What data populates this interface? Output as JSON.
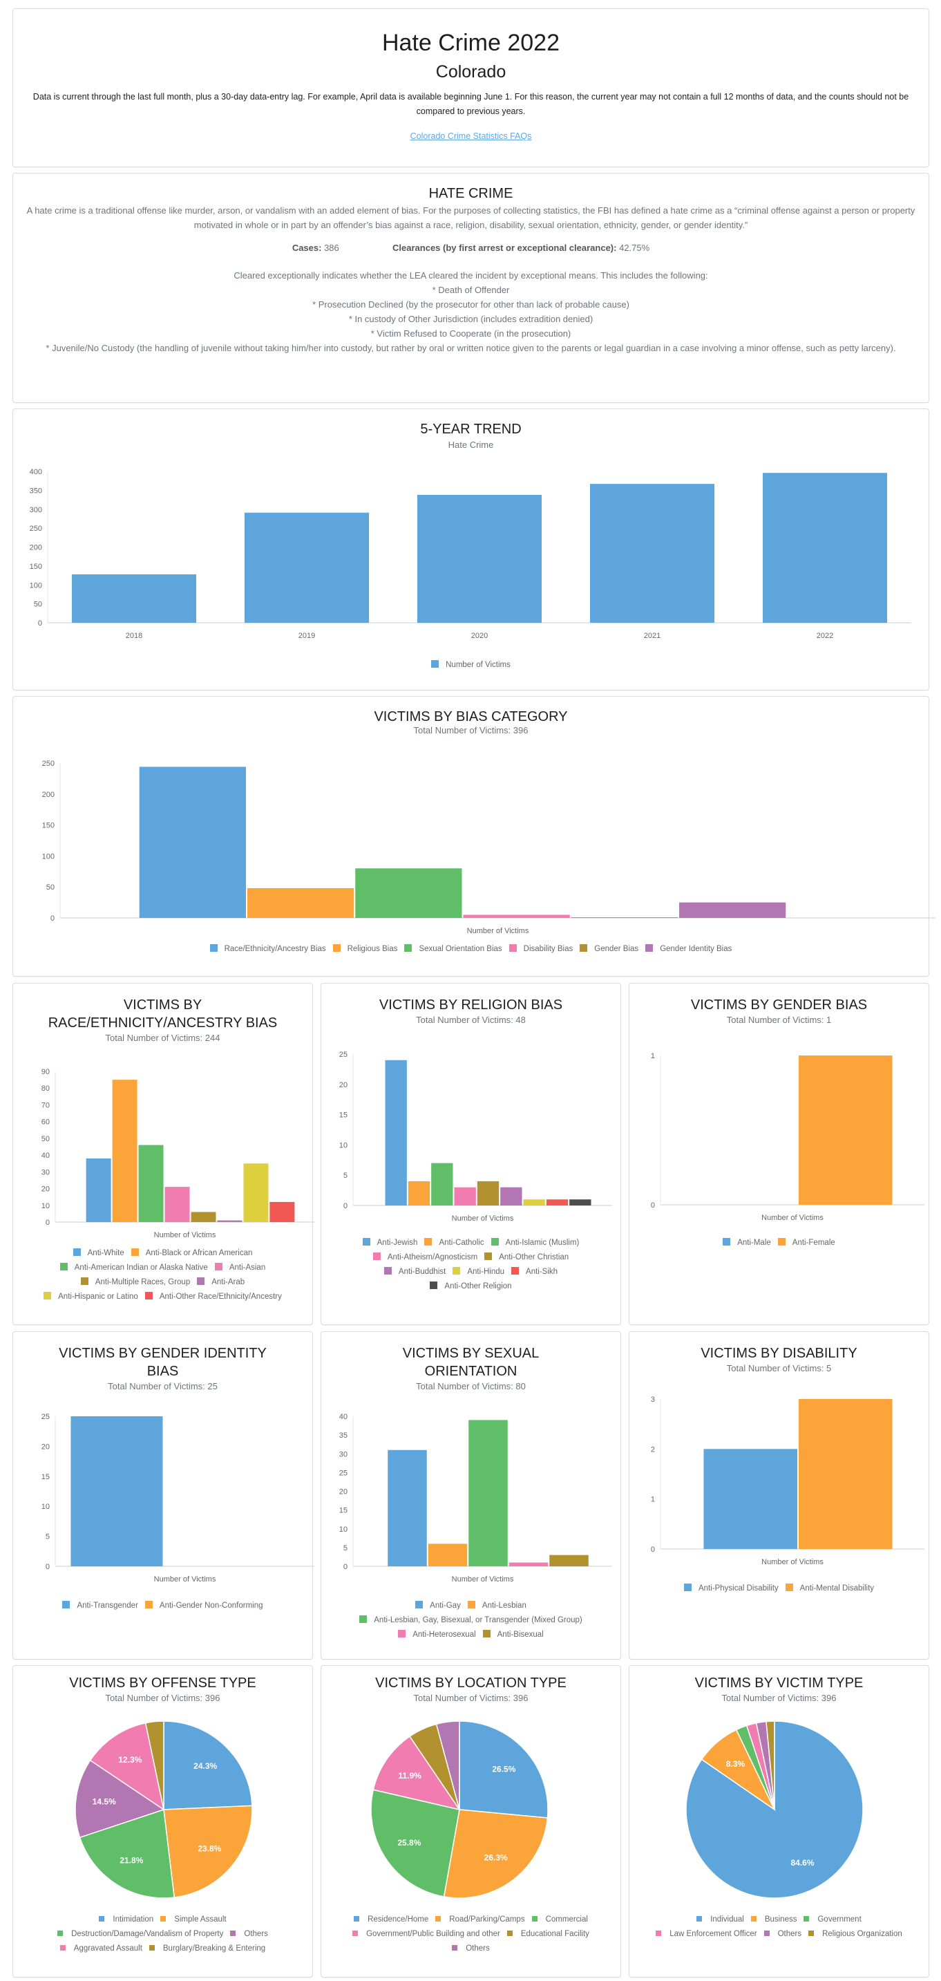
{
  "header": {
    "title": "Hate Crime 2022",
    "state": "Colorado",
    "note": "Data is current through the last full month, plus a 30-day data-entry lag. For example, April data is available beginning June 1. For this reason, the current year may not contain a full 12 months of data, and the counts should not be compared to previous years.",
    "faq_link": "Colorado Crime Statistics FAQs"
  },
  "hate_crime": {
    "title": "HATE CRIME",
    "definition": "A hate crime is a traditional offense like murder, arson, or vandalism with an added element of bias. For the purposes of collecting statistics, the FBI has defined a hate crime as a “criminal offense against a person or property motivated in whole or in part by an offender’s bias against a race, religion, disability, sexual orientation, ethnicity, gender, or gender identity.”",
    "cases_label": "Cases:",
    "cases_value": "386",
    "clearances_label": "Clearances (by first arrest or exceptional clearance):",
    "clearances_value": "42.75%",
    "cleared_intro": "Cleared exceptionally indicates whether the LEA cleared the incident by exceptional means. This includes the following:",
    "cleared_items": [
      "* Death of Offender",
      "* Prosecution Declined (by the prosecutor for other than lack of probable cause)",
      "* In custody of Other Jurisdiction (includes extradition denied)",
      "* Victim Refused to Cooperate (in the prosecution)",
      "* Juvenile/No Custody (the handling of juvenile without taking him/her into custody, but rather by oral or written notice given to the parents or legal guardian in a case involving a minor offense, such as petty larceny)."
    ]
  },
  "colors": {
    "blue": "#5da5da",
    "orange": "#faa43a",
    "green": "#60bd68",
    "pink": "#f17cb0",
    "olive": "#b2912f",
    "purple": "#b276b2",
    "yellow": "#decf3f",
    "red": "#f15854",
    "dark": "#4d4d4d",
    "link": "#5fa7e6"
  },
  "chart_data": [
    {
      "id": "trend",
      "type": "bar",
      "title": "5-YEAR TREND",
      "subtitle": "Hate Crime",
      "categories": [
        "2018",
        "2019",
        "2020",
        "2021",
        "2022"
      ],
      "series": [
        {
          "name": "Number of Victims",
          "values": [
            128,
            291,
            338,
            367,
            396
          ]
        }
      ],
      "ylim": [
        0,
        400
      ],
      "yticks": [
        0,
        50,
        100,
        150,
        200,
        250,
        300,
        350,
        400
      ],
      "xlabel": "",
      "ylabel": "",
      "legend": "bottom"
    },
    {
      "id": "bias",
      "type": "bar",
      "title": "VICTIMS BY BIAS CATEGORY",
      "subtitle": "Total Number of Victims: 396",
      "xlabel": "Number of Victims",
      "categories": [
        "Race/Ethnicity/Ancestry Bias",
        "Religious Bias",
        "Sexual Orientation Bias",
        "Disability Bias",
        "Gender Bias",
        "Gender Identity Bias"
      ],
      "values": [
        244,
        48,
        80,
        5,
        1,
        25
      ],
      "colors": [
        "blue",
        "orange",
        "green",
        "pink",
        "olive",
        "purple"
      ],
      "ylim": [
        0,
        250
      ],
      "yticks": [
        0,
        50,
        100,
        150,
        200,
        250
      ],
      "legend": "bottom"
    },
    {
      "id": "race",
      "type": "bar",
      "title": [
        "VICTIMS BY",
        "RACE/ETHNICITY/ANCESTRY BIAS"
      ],
      "subtitle": "Total Number of Victims: 244",
      "xlabel": "Number of Victims",
      "categories": [
        "Anti-White",
        "Anti-Black or African American",
        "Anti-American Indian or Alaska Native",
        "Anti-Asian",
        "Anti-Multiple Races, Group",
        "Anti-Arab",
        "Anti-Hispanic or Latino",
        "Anti-Other Race/Ethnicity/Ancestry"
      ],
      "values": [
        38,
        85,
        46,
        21,
        6,
        1,
        35,
        12
      ],
      "colors": [
        "blue",
        "orange",
        "green",
        "pink",
        "olive",
        "purple",
        "yellow",
        "red"
      ],
      "ylim": [
        0,
        90
      ],
      "yticks": [
        0,
        10,
        20,
        30,
        40,
        50,
        60,
        70,
        80,
        90
      ],
      "legend_rows": [
        [
          0,
          1
        ],
        [
          2,
          3
        ],
        [
          4,
          5
        ],
        [
          6,
          7
        ]
      ]
    },
    {
      "id": "religion",
      "type": "bar",
      "title": [
        "VICTIMS BY RELIGION BIAS"
      ],
      "subtitle": "Total Number of Victims: 48",
      "xlabel": "Number of Victims",
      "categories": [
        "Anti-Jewish",
        "Anti-Catholic",
        "Anti-Islamic (Muslim)",
        "Anti-Atheism/Agnosticism",
        "Anti-Other Christian",
        "Anti-Buddhist",
        "Anti-Hindu",
        "Anti-Sikh",
        "Anti-Other Religion"
      ],
      "values": [
        24,
        4,
        7,
        3,
        4,
        3,
        1,
        1,
        1
      ],
      "colors": [
        "blue",
        "orange",
        "green",
        "pink",
        "olive",
        "purple",
        "yellow",
        "red",
        "dark"
      ],
      "ylim": [
        0,
        25
      ],
      "yticks": [
        0,
        5,
        10,
        15,
        20,
        25
      ],
      "legend_rows": [
        [
          0,
          1,
          2
        ],
        [
          3,
          4
        ],
        [
          5,
          6,
          7
        ],
        [
          8
        ]
      ]
    },
    {
      "id": "gender",
      "type": "bar",
      "title": [
        "VICTIMS BY GENDER BIAS"
      ],
      "subtitle": "Total Number of Victims: 1",
      "xlabel": "Number of Victims",
      "categories": [
        "Anti-Male",
        "Anti-Female"
      ],
      "values": [
        0,
        1
      ],
      "colors": [
        "blue",
        "orange"
      ],
      "ylim": [
        0,
        1
      ],
      "yticks": [
        0,
        1
      ],
      "legend_rows": [
        [
          0,
          1
        ]
      ]
    },
    {
      "id": "gender_identity",
      "type": "bar",
      "title": [
        "VICTIMS BY GENDER IDENTITY",
        "BIAS"
      ],
      "subtitle": "Total Number of Victims: 25",
      "xlabel": "Number of Victims",
      "categories": [
        "Anti-Transgender",
        "Anti-Gender Non-Conforming"
      ],
      "values": [
        25,
        0
      ],
      "colors": [
        "blue",
        "orange"
      ],
      "ylim": [
        0,
        25
      ],
      "yticks": [
        0,
        5,
        10,
        15,
        20,
        25
      ],
      "legend_rows": [
        [
          0,
          1
        ]
      ]
    },
    {
      "id": "sexual_orientation",
      "type": "bar",
      "title": [
        "VICTIMS BY SEXUAL",
        "ORIENTATION"
      ],
      "subtitle": "Total Number of Victims: 80",
      "xlabel": "Number of Victims",
      "categories": [
        "Anti-Gay",
        "Anti-Lesbian",
        "Anti-Lesbian, Gay, Bisexual, or Transgender (Mixed Group)",
        "Anti-Heterosexual",
        "Anti-Bisexual"
      ],
      "values": [
        31,
        6,
        39,
        1,
        3
      ],
      "colors": [
        "blue",
        "orange",
        "green",
        "pink",
        "olive"
      ],
      "ylim": [
        0,
        40
      ],
      "yticks": [
        0,
        5,
        10,
        15,
        20,
        25,
        30,
        35,
        40
      ],
      "legend_rows": [
        [
          0,
          1
        ],
        [
          2
        ],
        [
          3,
          4
        ]
      ]
    },
    {
      "id": "disability",
      "type": "bar",
      "title": [
        "VICTIMS BY DISABILITY"
      ],
      "subtitle": "Total Number of Victims: 5",
      "xlabel": "Number of Victims",
      "categories": [
        "Anti-Physical Disability",
        "Anti-Mental Disability"
      ],
      "values": [
        2,
        3
      ],
      "colors": [
        "blue",
        "orange"
      ],
      "ylim": [
        0,
        3
      ],
      "yticks": [
        0,
        1,
        2,
        3
      ],
      "legend_rows": [
        [
          0,
          1
        ]
      ]
    },
    {
      "id": "offense",
      "type": "pie",
      "title": "VICTIMS BY OFFENSE TYPE",
      "subtitle": "Total Number of Victims: 396",
      "categories": [
        "Intimidation",
        "Simple Assault",
        "Destruction/Damage/Vandalism of Property",
        "Others",
        "Aggravated Assault",
        "Burglary/Breaking & Entering"
      ],
      "values": [
        24.3,
        23.8,
        21.8,
        14.5,
        12.3,
        3.3
      ],
      "labels": [
        "24.3%",
        "23.8%",
        "21.8%",
        "14.5%",
        "12.3%",
        ""
      ],
      "colors": [
        "blue",
        "orange",
        "green",
        "purple",
        "pink",
        "olive"
      ],
      "legend_rows": [
        [
          0,
          1
        ],
        [
          2,
          3
        ],
        [
          4,
          5
        ]
      ]
    },
    {
      "id": "location",
      "type": "pie",
      "title": "VICTIMS BY LOCATION TYPE",
      "subtitle": "Total Number of Victims: 396",
      "categories": [
        "Residence/Home",
        "Road/Parking/Camps",
        "Commercial",
        "Government/Public Building and other",
        "Educational Facility",
        "Others"
      ],
      "values": [
        26.5,
        26.3,
        25.8,
        11.9,
        5.3,
        4.2
      ],
      "labels": [
        "26.5%",
        "26.3%",
        "25.8%",
        "11.9%",
        "",
        ""
      ],
      "colors": [
        "blue",
        "orange",
        "green",
        "pink",
        "olive",
        "purple"
      ],
      "legend_rows": [
        [
          0,
          1,
          2
        ],
        [
          3,
          4
        ],
        [
          5
        ]
      ]
    },
    {
      "id": "victim_type",
      "type": "pie",
      "title": "VICTIMS BY VICTIM TYPE",
      "subtitle": "Total Number of Victims: 396",
      "categories": [
        "Individual",
        "Business",
        "Government",
        "Law Enforcement Officer",
        "Others",
        "Religious Organization"
      ],
      "values": [
        84.6,
        8.3,
        2.0,
        1.8,
        1.8,
        1.5
      ],
      "labels": [
        "84.6%",
        "8.3%",
        "",
        "",
        "",
        ""
      ],
      "colors": [
        "blue",
        "orange",
        "green",
        "pink",
        "purple",
        "olive"
      ],
      "legend_rows": [
        [
          0,
          1,
          2
        ],
        [
          3,
          4,
          5
        ]
      ]
    }
  ]
}
